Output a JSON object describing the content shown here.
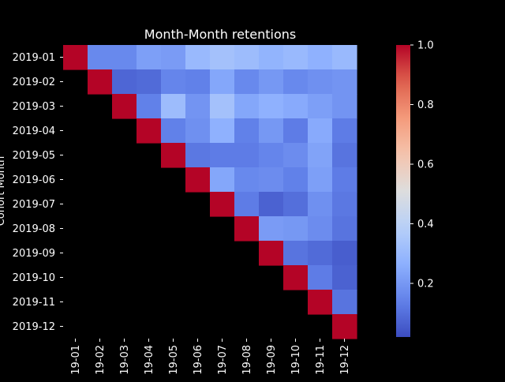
{
  "chart_data": {
    "type": "heatmap",
    "title": "Month-Month retentions",
    "ylabel": "Cohort Month",
    "xlabel": "",
    "row_labels": [
      "2019-01",
      "2019-02",
      "2019-03",
      "2019-04",
      "2019-05",
      "2019-06",
      "2019-07",
      "2019-08",
      "2019-09",
      "2019-10",
      "2019-11",
      "2019-12"
    ],
    "col_labels": [
      "19-01",
      "19-02",
      "19-03",
      "19-04",
      "19-05",
      "19-06",
      "19-07",
      "19-08",
      "19-09",
      "19-10",
      "19-11",
      "19-12"
    ],
    "values": [
      [
        1.0,
        0.16,
        0.16,
        0.22,
        0.21,
        0.3,
        0.33,
        0.31,
        0.28,
        0.3,
        0.27,
        0.3
      ],
      [
        null,
        1.0,
        0.08,
        0.09,
        0.15,
        0.14,
        0.24,
        0.16,
        0.2,
        0.16,
        0.18,
        0.19
      ],
      [
        null,
        null,
        1.0,
        0.14,
        0.31,
        0.19,
        0.33,
        0.24,
        0.27,
        0.25,
        0.22,
        0.19
      ],
      [
        null,
        null,
        null,
        1.0,
        0.14,
        0.18,
        0.27,
        0.14,
        0.2,
        0.13,
        0.25,
        0.13
      ],
      [
        null,
        null,
        null,
        null,
        1.0,
        0.12,
        0.13,
        0.13,
        0.15,
        0.17,
        0.23,
        0.11
      ],
      [
        null,
        null,
        null,
        null,
        null,
        1.0,
        0.24,
        0.16,
        0.17,
        0.14,
        0.22,
        0.13
      ],
      [
        null,
        null,
        null,
        null,
        null,
        null,
        1.0,
        0.13,
        0.07,
        0.1,
        0.18,
        0.12
      ],
      [
        null,
        null,
        null,
        null,
        null,
        null,
        null,
        1.0,
        0.21,
        0.2,
        0.17,
        0.11
      ],
      [
        null,
        null,
        null,
        null,
        null,
        null,
        null,
        null,
        1.0,
        0.11,
        0.09,
        0.06
      ],
      [
        null,
        null,
        null,
        null,
        null,
        null,
        null,
        null,
        null,
        1.0,
        0.13,
        0.07
      ],
      [
        null,
        null,
        null,
        null,
        null,
        null,
        null,
        null,
        null,
        null,
        1.0,
        0.11
      ],
      [
        null,
        null,
        null,
        null,
        null,
        null,
        null,
        null,
        null,
        null,
        null,
        1.0
      ]
    ],
    "colorbar": {
      "colormap": "coolwarm",
      "min": 0.02,
      "max": 1.0,
      "ticks": [
        0.2,
        0.4,
        0.6,
        0.8,
        1.0
      ],
      "tick_labels": [
        "0.2",
        "0.4",
        "0.6",
        "0.8",
        "1.0"
      ]
    },
    "background": "#000000",
    "text_color": "#ffffff"
  }
}
